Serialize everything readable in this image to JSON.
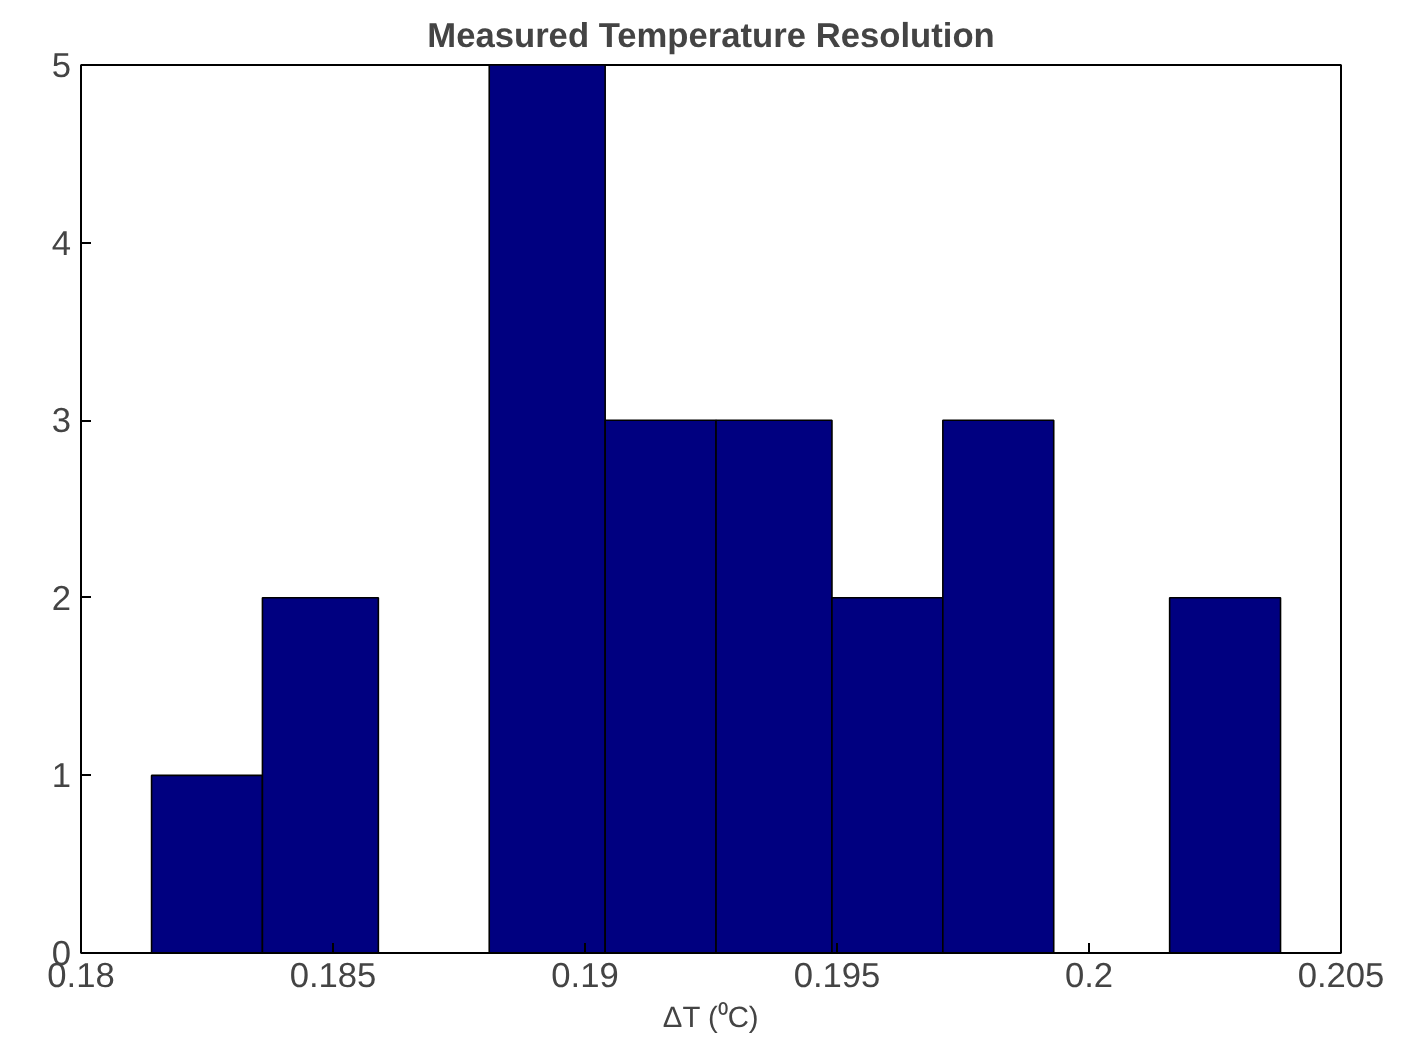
{
  "chart_data": {
    "type": "histogram",
    "title": "Measured Temperature Resolution",
    "xlabel": "ΔT (⁰C)",
    "bins": [
      0.1814,
      0.1836,
      0.1859,
      0.1881,
      0.1904,
      0.1926,
      0.1949,
      0.1971,
      0.1993,
      0.2016,
      0.2038
    ],
    "values": [
      1,
      2,
      0,
      5,
      3,
      3,
      2,
      3,
      0,
      2
    ],
    "color": "#000080",
    "xlim": [
      0.18,
      0.205
    ],
    "xticks": [
      0.18,
      0.185,
      0.19,
      0.195,
      0.2,
      0.205
    ],
    "ylim": [
      0,
      5
    ],
    "yticks": [
      0,
      1,
      2,
      3,
      4,
      5
    ],
    "grid": false
  }
}
